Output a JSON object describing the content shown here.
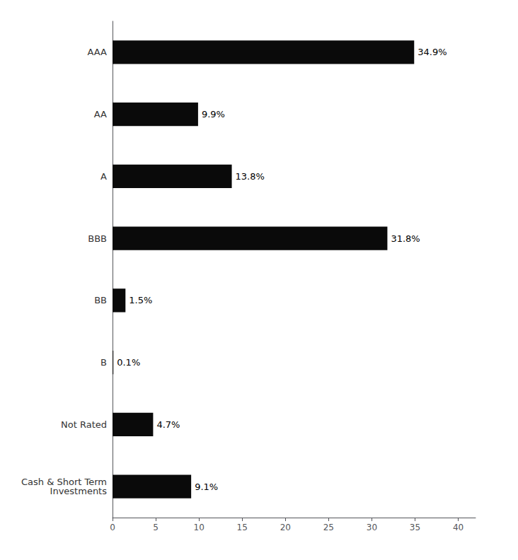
{
  "chart_data": {
    "type": "bar",
    "orientation": "horizontal",
    "categories": [
      "AAA",
      "AA",
      "A",
      "BBB",
      "BB",
      "B",
      "Not Rated",
      "Cash & Short Term\nInvestments"
    ],
    "values": [
      34.9,
      9.9,
      13.8,
      31.8,
      1.5,
      0.1,
      4.7,
      9.1
    ],
    "value_labels": [
      "34.9%",
      "9.9%",
      "13.8%",
      "31.8%",
      "1.5%",
      "0.1%",
      "4.7%",
      "9.1%"
    ],
    "color": "#0a0a0a",
    "xlim": [
      0,
      42
    ],
    "xticks": [
      0,
      5,
      10,
      15,
      20,
      25,
      30,
      35,
      40
    ],
    "grid": false,
    "data_labels": true
  }
}
